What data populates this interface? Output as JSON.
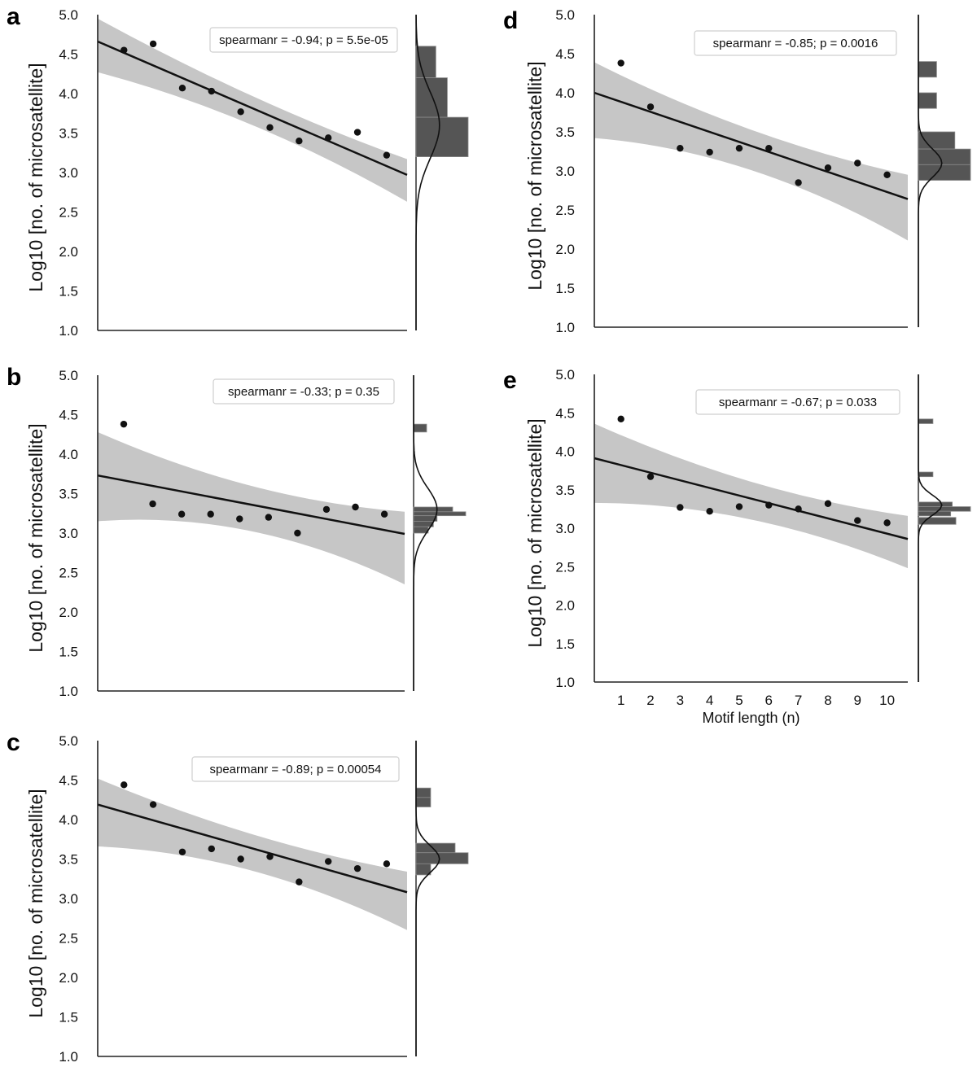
{
  "chart_data": [
    {
      "panel": "a",
      "type": "scatter",
      "annotation": "spearmanr = -0.94; p = 5.5e-05",
      "ylabel": "Log10 [no. of microsatellite]",
      "xlabel": "",
      "yticks": [
        "1.0",
        "1.5",
        "2.0",
        "2.5",
        "3.0",
        "3.5",
        "4.0",
        "4.5",
        "5.0"
      ],
      "ylim": [
        1.0,
        5.0
      ],
      "x": [
        1,
        2,
        3,
        4,
        5,
        6,
        7,
        8,
        9,
        10
      ],
      "y": [
        4.55,
        4.63,
        4.07,
        4.03,
        3.77,
        3.57,
        3.4,
        3.44,
        3.51,
        3.22
      ],
      "fit": {
        "y_start": 4.66,
        "y_end": 2.97
      },
      "band": {
        "upper_start": 4.95,
        "upper_end": 3.17,
        "lower_start": 4.27,
        "lower_end": 2.63
      },
      "hist": {
        "ylim": [
          3.2,
          4.6
        ],
        "bins": [
          [
            4.2,
            4.6,
            0.38
          ],
          [
            3.7,
            4.2,
            0.6
          ],
          [
            3.2,
            3.7,
            1.0
          ]
        ]
      },
      "kde": {
        "mean": 3.6,
        "sd": 0.42
      },
      "grid": false
    },
    {
      "panel": "b",
      "type": "scatter",
      "annotation": "spearmanr = -0.33; p = 0.35",
      "ylabel": "Log10 [no. of microsatellite]",
      "xlabel": "",
      "yticks": [
        "1.0",
        "1.5",
        "2.0",
        "2.5",
        "3.0",
        "3.5",
        "4.0",
        "4.5",
        "5.0"
      ],
      "ylim": [
        1.0,
        5.0
      ],
      "x": [
        1,
        2,
        3,
        4,
        5,
        6,
        7,
        8,
        9,
        10
      ],
      "y": [
        4.38,
        3.37,
        3.24,
        3.24,
        3.18,
        3.2,
        3.0,
        3.3,
        3.33,
        3.24
      ],
      "fit": {
        "y_start": 3.73,
        "y_end": 2.99
      },
      "band": {
        "upper_start": 4.28,
        "upper_end": 3.27,
        "lower_start": 3.15,
        "lower_end": 2.35
      },
      "hist": {
        "ylim": [
          3.0,
          4.4
        ],
        "bins": [
          [
            4.28,
            4.38,
            0.25
          ],
          [
            3.27,
            3.33,
            0.75
          ],
          [
            3.22,
            3.27,
            1.0
          ],
          [
            3.15,
            3.22,
            0.45
          ],
          [
            3.08,
            3.15,
            0.38
          ],
          [
            3.0,
            3.08,
            0.28
          ]
        ]
      },
      "kde": {
        "mean": 3.3,
        "sd": 0.27
      },
      "grid": false
    },
    {
      "panel": "c",
      "type": "scatter",
      "annotation": "spearmanr = -0.89; p = 0.00054",
      "ylabel": "Log10 [no. of microsatellite]",
      "xlabel": "",
      "yticks": [
        "1.0",
        "1.5",
        "2.0",
        "2.5",
        "3.0",
        "3.5",
        "4.0",
        "4.5",
        "5.0"
      ],
      "ylim": [
        1.0,
        5.0
      ],
      "x": [
        1,
        2,
        3,
        4,
        5,
        6,
        7,
        8,
        9,
        10
      ],
      "y": [
        4.44,
        4.19,
        3.59,
        3.63,
        3.5,
        3.53,
        3.21,
        3.47,
        3.38,
        3.44
      ],
      "fit": {
        "y_start": 4.19,
        "y_end": 3.08
      },
      "band": {
        "upper_start": 4.52,
        "upper_end": 3.34,
        "lower_start": 3.66,
        "lower_end": 2.6
      },
      "hist": {
        "ylim": [
          3.2,
          4.4
        ],
        "bins": [
          [
            4.28,
            4.4,
            0.28
          ],
          [
            4.16,
            4.28,
            0.28
          ],
          [
            3.58,
            3.7,
            0.75
          ],
          [
            3.44,
            3.58,
            1.0
          ],
          [
            3.3,
            3.44,
            0.28
          ]
        ]
      },
      "kde": {
        "mean": 3.5,
        "sd": 0.17
      },
      "grid": false
    },
    {
      "panel": "d",
      "type": "scatter",
      "annotation": "spearmanr = -0.85; p = 0.0016",
      "ylabel": "Log10 [no. of microsatellite]",
      "xlabel": "",
      "yticks": [
        "1.0",
        "1.5",
        "2.0",
        "2.5",
        "3.0",
        "3.5",
        "4.0",
        "4.5",
        "5.0"
      ],
      "ylim": [
        1.0,
        5.0
      ],
      "x": [
        1,
        2,
        3,
        4,
        5,
        6,
        7,
        8,
        9,
        10
      ],
      "y": [
        4.38,
        3.82,
        3.29,
        3.24,
        3.29,
        3.29,
        2.85,
        3.04,
        3.1,
        2.95
      ],
      "fit": {
        "y_start": 4.0,
        "y_end": 2.64
      },
      "band": {
        "upper_start": 4.39,
        "upper_end": 2.95,
        "lower_start": 3.42,
        "lower_end": 2.11
      },
      "hist": {
        "ylim": [
          2.85,
          4.4
        ],
        "bins": [
          [
            4.2,
            4.4,
            0.35
          ],
          [
            3.8,
            4.0,
            0.35
          ],
          [
            3.28,
            3.5,
            0.7
          ],
          [
            3.08,
            3.28,
            1.0
          ],
          [
            2.88,
            3.08,
            1.0
          ]
        ]
      },
      "kde": {
        "mean": 3.1,
        "sd": 0.18
      },
      "grid": false
    },
    {
      "panel": "e",
      "type": "scatter",
      "annotation": "spearmanr = -0.67; p = 0.033",
      "ylabel": "Log10 [no. of microsatellite]",
      "xlabel": "Motif length (n)",
      "xticks": [
        "1",
        "2",
        "3",
        "4",
        "5",
        "6",
        "7",
        "8",
        "9",
        "10"
      ],
      "yticks": [
        "1.0",
        "1.5",
        "2.0",
        "2.5",
        "3.0",
        "3.5",
        "4.0",
        "4.5",
        "5.0"
      ],
      "ylim": [
        1.0,
        5.0
      ],
      "x": [
        1,
        2,
        3,
        4,
        5,
        6,
        7,
        8,
        9,
        10
      ],
      "y": [
        4.42,
        3.67,
        3.27,
        3.22,
        3.28,
        3.3,
        3.25,
        3.32,
        3.1,
        3.07
      ],
      "fit": {
        "y_start": 3.91,
        "y_end": 2.86
      },
      "band": {
        "upper_start": 4.36,
        "upper_end": 3.16,
        "lower_start": 3.33,
        "lower_end": 2.48
      },
      "hist": {
        "ylim": [
          3.05,
          4.4
        ],
        "bins": [
          [
            4.36,
            4.42,
            0.28
          ],
          [
            3.67,
            3.73,
            0.28
          ],
          [
            3.28,
            3.34,
            0.65
          ],
          [
            3.22,
            3.28,
            1.0
          ],
          [
            3.16,
            3.22,
            0.62
          ],
          [
            3.05,
            3.14,
            0.72
          ]
        ]
      },
      "kde": {
        "mean": 3.3,
        "sd": 0.13
      },
      "grid": false
    }
  ],
  "colors": {
    "band": "#c6c6c6",
    "line": "#111111",
    "points": "#111111",
    "hist": "#555555",
    "axis": "#222222"
  }
}
